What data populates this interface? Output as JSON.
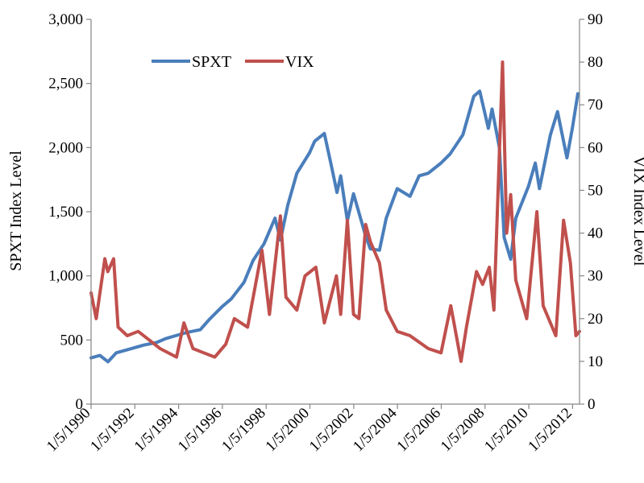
{
  "chart_data": {
    "type": "line",
    "title": "",
    "xlabel": "",
    "ylabel_left": "SPXT Index Level",
    "ylabel_right": "VIX Index Level",
    "x_tick_labels": [
      "1/5/1990",
      "1/5/1992",
      "1/5/1994",
      "1/5/1996",
      "1/5/1998",
      "1/5/2000",
      "1/5/2002",
      "1/5/2004",
      "1/5/2006",
      "1/5/2008",
      "1/5/2010",
      "1/5/2012"
    ],
    "x_range": [
      "1990-01-05",
      "2012-04-30"
    ],
    "y_left_ticks": [
      0,
      500,
      1000,
      1500,
      2000,
      2500,
      3000
    ],
    "y_left_tick_labels": [
      "0",
      "500",
      "1,000",
      "1,500",
      "2,000",
      "2,500",
      "3,000"
    ],
    "y_left_range": [
      0,
      3000
    ],
    "y_right_ticks": [
      0,
      10,
      20,
      30,
      40,
      50,
      60,
      70,
      80,
      90
    ],
    "y_right_tick_labels": [
      "0",
      "10",
      "20",
      "30",
      "40",
      "50",
      "60",
      "70",
      "80",
      "90"
    ],
    "y_right_range": [
      0,
      90
    ],
    "grid": false,
    "legend_position": "top-left",
    "series": [
      {
        "name": "SPXT",
        "axis": "left",
        "color": "#4a7ebb",
        "points": [
          [
            "1990-01-05",
            360
          ],
          [
            "1990-06-01",
            380
          ],
          [
            "1990-10-15",
            330
          ],
          [
            "1991-03-01",
            400
          ],
          [
            "1991-12-31",
            440
          ],
          [
            "1992-06-01",
            460
          ],
          [
            "1993-01-01",
            480
          ],
          [
            "1993-06-01",
            510
          ],
          [
            "1994-01-01",
            540
          ],
          [
            "1994-06-01",
            560
          ],
          [
            "1995-01-01",
            580
          ],
          [
            "1995-06-01",
            660
          ],
          [
            "1996-01-01",
            760
          ],
          [
            "1996-06-01",
            820
          ],
          [
            "1997-01-01",
            950
          ],
          [
            "1997-06-01",
            1120
          ],
          [
            "1997-12-01",
            1250
          ],
          [
            "1998-06-01",
            1450
          ],
          [
            "1998-09-01",
            1280
          ],
          [
            "1998-12-31",
            1550
          ],
          [
            "1999-06-01",
            1800
          ],
          [
            "1999-12-31",
            1960
          ],
          [
            "2000-03-24",
            2050
          ],
          [
            "2000-09-01",
            2110
          ],
          [
            "2001-01-01",
            1850
          ],
          [
            "2001-04-01",
            1650
          ],
          [
            "2001-06-01",
            1780
          ],
          [
            "2001-09-21",
            1430
          ],
          [
            "2002-01-01",
            1640
          ],
          [
            "2002-07-24",
            1310
          ],
          [
            "2002-10-09",
            1210
          ],
          [
            "2003-03-11",
            1200
          ],
          [
            "2003-07-01",
            1450
          ],
          [
            "2004-01-01",
            1680
          ],
          [
            "2004-08-01",
            1620
          ],
          [
            "2005-01-01",
            1780
          ],
          [
            "2005-06-01",
            1800
          ],
          [
            "2006-01-01",
            1880
          ],
          [
            "2006-06-01",
            1950
          ],
          [
            "2007-01-01",
            2100
          ],
          [
            "2007-07-01",
            2400
          ],
          [
            "2007-10-09",
            2440
          ],
          [
            "2008-03-01",
            2150
          ],
          [
            "2008-05-01",
            2300
          ],
          [
            "2008-09-01",
            2000
          ],
          [
            "2008-11-20",
            1300
          ],
          [
            "2009-03-09",
            1130
          ],
          [
            "2009-06-01",
            1450
          ],
          [
            "2010-01-01",
            1700
          ],
          [
            "2010-04-23",
            1880
          ],
          [
            "2010-07-02",
            1680
          ],
          [
            "2011-01-01",
            2100
          ],
          [
            "2011-04-29",
            2280
          ],
          [
            "2011-10-03",
            1920
          ],
          [
            "2012-01-01",
            2150
          ],
          [
            "2012-04-02",
            2420
          ]
        ]
      },
      {
        "name": "VIX",
        "axis": "right",
        "color": "#c0504d",
        "points": [
          [
            "1990-01-05",
            26
          ],
          [
            "1990-04-01",
            20
          ],
          [
            "1990-08-23",
            34
          ],
          [
            "1990-10-10",
            31
          ],
          [
            "1991-01-16",
            34
          ],
          [
            "1991-04-01",
            18
          ],
          [
            "1991-09-01",
            16
          ],
          [
            "1992-03-01",
            17
          ],
          [
            "1992-09-01",
            15
          ],
          [
            "1993-03-01",
            13
          ],
          [
            "1993-12-01",
            11
          ],
          [
            "1994-04-04",
            19
          ],
          [
            "1994-09-01",
            13
          ],
          [
            "1995-03-01",
            12
          ],
          [
            "1995-09-01",
            11
          ],
          [
            "1996-03-01",
            14
          ],
          [
            "1996-07-24",
            20
          ],
          [
            "1997-03-01",
            18
          ],
          [
            "1997-10-27",
            36
          ],
          [
            "1998-03-01",
            21
          ],
          [
            "1998-08-31",
            44
          ],
          [
            "1998-12-01",
            25
          ],
          [
            "1999-06-01",
            22
          ],
          [
            "1999-10-15",
            30
          ],
          [
            "2000-04-14",
            32
          ],
          [
            "2000-09-01",
            19
          ],
          [
            "2001-03-22",
            30
          ],
          [
            "2001-06-01",
            21
          ],
          [
            "2001-09-21",
            43
          ],
          [
            "2002-01-01",
            21
          ],
          [
            "2002-04-01",
            20
          ],
          [
            "2002-07-24",
            42
          ],
          [
            "2002-10-09",
            38
          ],
          [
            "2003-03-11",
            33
          ],
          [
            "2003-07-01",
            22
          ],
          [
            "2004-01-01",
            17
          ],
          [
            "2004-08-01",
            16
          ],
          [
            "2005-06-01",
            13
          ],
          [
            "2006-01-01",
            12
          ],
          [
            "2006-06-13",
            23
          ],
          [
            "2006-12-01",
            10
          ],
          [
            "2007-03-01",
            18
          ],
          [
            "2007-08-16",
            31
          ],
          [
            "2007-11-26",
            28
          ],
          [
            "2008-03-17",
            32
          ],
          [
            "2008-06-01",
            22
          ],
          [
            "2008-10-24",
            80
          ],
          [
            "2008-12-31",
            40
          ],
          [
            "2009-03-09",
            49
          ],
          [
            "2009-06-01",
            29
          ],
          [
            "2009-12-01",
            20
          ],
          [
            "2010-05-20",
            45
          ],
          [
            "2010-09-01",
            23
          ],
          [
            "2011-04-01",
            16
          ],
          [
            "2011-08-08",
            43
          ],
          [
            "2011-11-30",
            33
          ],
          [
            "2012-03-01",
            16
          ],
          [
            "2012-04-30",
            17
          ]
        ]
      }
    ]
  }
}
